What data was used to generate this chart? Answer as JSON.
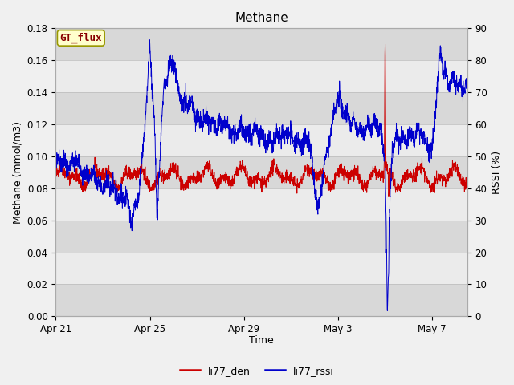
{
  "title": "Methane",
  "xlabel": "Time",
  "ylabel_left": "Methane (mmol/m3)",
  "ylabel_right": "RSSI (%)",
  "ylim_left": [
    0.0,
    0.18
  ],
  "ylim_right": [
    0,
    90
  ],
  "yticks_left": [
    0.0,
    0.02,
    0.04,
    0.06,
    0.08,
    0.1,
    0.12,
    0.14,
    0.16,
    0.18
  ],
  "yticks_right": [
    0,
    10,
    20,
    30,
    40,
    50,
    60,
    70,
    80,
    90
  ],
  "color_den": "#cc0000",
  "color_rssi": "#0000cc",
  "bg_color": "#f0f0f0",
  "band_light": "#ebebeb",
  "band_dark": "#d8d8d8",
  "gt_flux_label": "GT_flux",
  "gt_flux_bg": "#ffffcc",
  "gt_flux_border": "#999900",
  "gt_flux_text_color": "#880000",
  "legend_den": "li77_den",
  "legend_rssi": "li77_rssi",
  "xtick_labels": [
    "Apr 21",
    "Apr 25",
    "Apr 29",
    "May 3",
    "May 7"
  ],
  "xtick_days": [
    0,
    4,
    8,
    12,
    16
  ],
  "xlim": [
    0,
    17.5
  ]
}
